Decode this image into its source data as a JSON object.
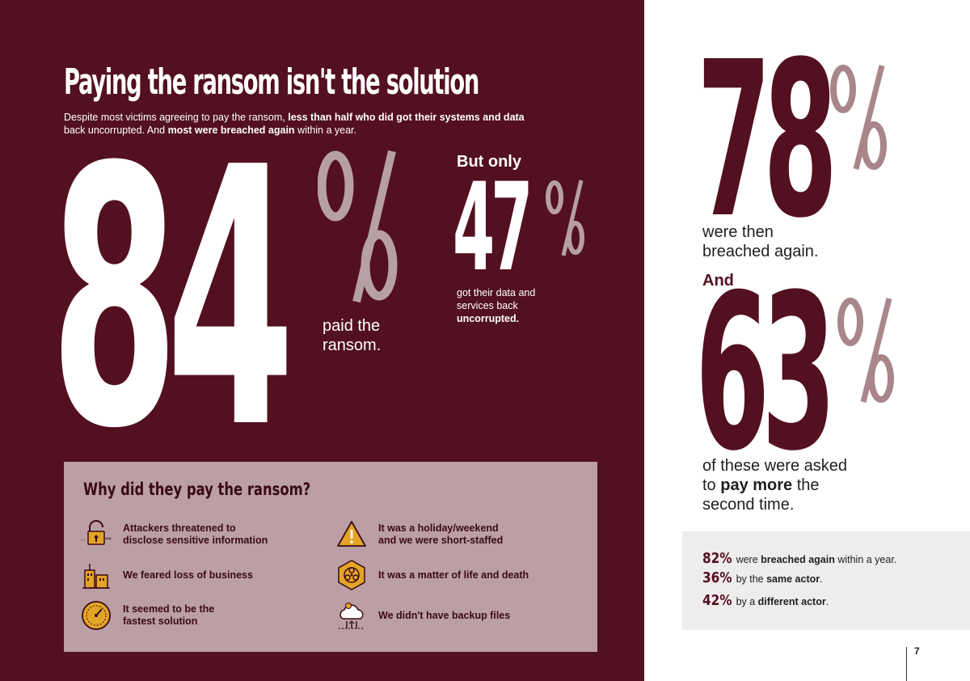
{
  "left": {
    "headline": "Paying the ransom isn't the solution",
    "intro": {
      "part1": "Despite most victims agreeing to pay the ransom, ",
      "bold1": "less than half who did got their systems and data",
      "part2": " back uncorrupted. And ",
      "bold2": "most were breached again",
      "part3": " within a year."
    },
    "stat_paid": {
      "number": "84",
      "percent_sign": "%",
      "caption_line1": "paid the",
      "caption_line2": "ransom."
    },
    "stat_uncorrupted": {
      "lead": "But only",
      "number": "47",
      "percent_sign": "%",
      "caption_line1": "got their data and",
      "caption_line2": "services back",
      "caption_bold": "uncorrupted."
    },
    "reasons": {
      "title": "Why did they pay the ransom?",
      "items": [
        {
          "icon": "padlock-icon",
          "line1": "Attackers threatened to",
          "line2": "disclose sensitive information"
        },
        {
          "icon": "warning-icon",
          "line1": "It was a holiday/weekend",
          "line2": "and we were short-staffed"
        },
        {
          "icon": "buildings-icon",
          "line1": "We feared loss of business",
          "line2": ""
        },
        {
          "icon": "biohazard-icon",
          "line1": "It was a matter of life and death",
          "line2": ""
        },
        {
          "icon": "speedometer-icon",
          "line1": "It seemed to be the",
          "line2": "fastest solution"
        },
        {
          "icon": "cloud-backup-icon",
          "line1": "We didn't have backup files",
          "line2": ""
        }
      ]
    }
  },
  "right": {
    "stat_breached": {
      "number": "78",
      "percent_sign": "%",
      "caption_line1": "were then",
      "caption_line2": "breached again."
    },
    "and_label": "And",
    "stat_pay_more": {
      "number": "63",
      "percent_sign": "%",
      "caption_part1": "of these were asked",
      "caption_part2": "to ",
      "caption_bold": "pay more",
      "caption_part3": " the",
      "caption_line3": "second time."
    },
    "stats_box": [
      {
        "value": "82%",
        "text1": " were ",
        "bold": "breached again",
        "text2": " within a year."
      },
      {
        "value": "36%",
        "text1": " by the ",
        "bold": "same actor",
        "text2": "."
      },
      {
        "value": "42%",
        "text1": " by a ",
        "bold": "different actor",
        "text2": "."
      }
    ],
    "page_number": "7"
  },
  "colors": {
    "maroon": "#531020",
    "pink_box": "#bb9fa4",
    "percent_light": "#b6a0a5",
    "percent_on_white": "#a8868c",
    "icon_gold": "#e3a526"
  }
}
